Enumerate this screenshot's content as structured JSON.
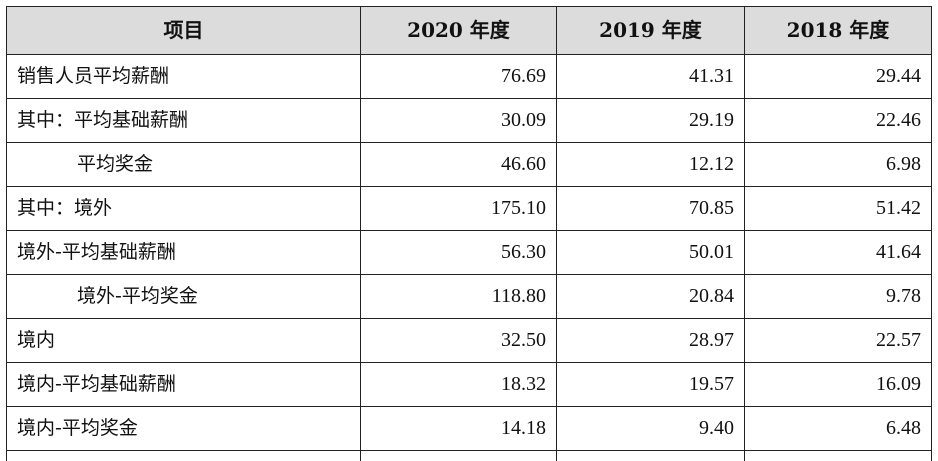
{
  "table": {
    "headers": [
      "项目",
      "2020 年度",
      "2019 年度",
      "2018 年度"
    ],
    "rows": [
      {
        "label": "销售人员平均薪酬",
        "indent": false,
        "values": [
          "76.69",
          "41.31",
          "29.44"
        ]
      },
      {
        "label": "其中：平均基础薪酬",
        "indent": false,
        "values": [
          "30.09",
          "29.19",
          "22.46"
        ]
      },
      {
        "label": "平均奖金",
        "indent": true,
        "values": [
          "46.60",
          "12.12",
          "6.98"
        ]
      },
      {
        "label": "其中：境外",
        "indent": false,
        "values": [
          "175.10",
          "70.85",
          "51.42"
        ]
      },
      {
        "label": "境外-平均基础薪酬",
        "indent": false,
        "values": [
          "56.30",
          "50.01",
          "41.64"
        ]
      },
      {
        "label": "境外-平均奖金",
        "indent": true,
        "values": [
          "118.80",
          "20.84",
          "9.78"
        ]
      },
      {
        "label": "境内",
        "indent": false,
        "values": [
          "32.50",
          "28.97",
          "22.57"
        ]
      },
      {
        "label": "境内-平均基础薪酬",
        "indent": false,
        "values": [
          "18.32",
          "19.57",
          "16.09"
        ]
      },
      {
        "label": "境内-平均奖金",
        "indent": false,
        "values": [
          "14.18",
          "9.40",
          "6.48"
        ]
      }
    ]
  }
}
